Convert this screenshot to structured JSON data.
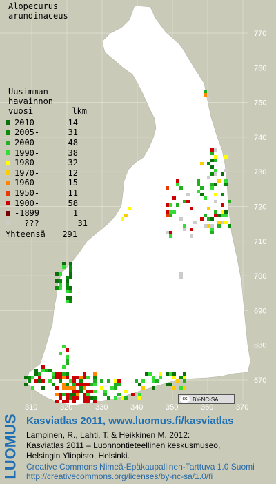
{
  "map": {
    "species_line1": "Alopecurus",
    "species_line2": "arundinaceus",
    "y_ticks": [
      "770",
      "760",
      "750",
      "740",
      "730",
      "720",
      "710",
      "700",
      "690",
      "680",
      "670"
    ],
    "x_ticks": [
      "310",
      "320",
      "330",
      "340",
      "350",
      "360",
      "370"
    ]
  },
  "legend": {
    "title_line1": "Uusimman",
    "title_line2": "havainnon",
    "title_line3": "vuosi",
    "count_header": "lkm",
    "rows": [
      {
        "label": "2010-",
        "count": "14",
        "color": "#0b6f0b"
      },
      {
        "label": "2005-",
        "count": "31",
        "color": "#098c09"
      },
      {
        "label": "2000-",
        "count": "48",
        "color": "#22b022"
      },
      {
        "label": "1990-",
        "count": "38",
        "color": "#33dd33"
      },
      {
        "label": "1980-",
        "count": "32",
        "color": "#ffff00"
      },
      {
        "label": "1970-",
        "count": "12",
        "color": "#ffcc00"
      },
      {
        "label": "1960-",
        "count": "15",
        "color": "#ff8800"
      },
      {
        "label": "1950-",
        "count": "11",
        "color": "#e83a00"
      },
      {
        "label": "1900-",
        "count": "58",
        "color": "#cc0000"
      },
      {
        "label": "-1899",
        "count": "1",
        "color": "#7a0000"
      },
      {
        "label": "???",
        "count": "31",
        "color": "#cccccc"
      }
    ],
    "total_label": "Yhteensä",
    "total_count": "291"
  },
  "cc_badge": "BY-NC-SA",
  "footer": {
    "logo": "LUOMUS",
    "title": "Kasviatlas 2011, www.luomus.fi/kasviatlas",
    "citation_1": "Lampinen, R., Lahti, T. & Heikkinen M. 2012:",
    "citation_2": "Kasviatlas 2011 – Luonnontieteellinen keskusmuseo,",
    "citation_3": "Helsingin Yliopisto, Helsinki.",
    "license_1": "Creative Commons Nimeä-Epäkaupallinen-Tarttuva 1.0 Suomi",
    "license_2": "http://creativecommons.org/licenses/by-nc-sa/1.0/fi"
  }
}
